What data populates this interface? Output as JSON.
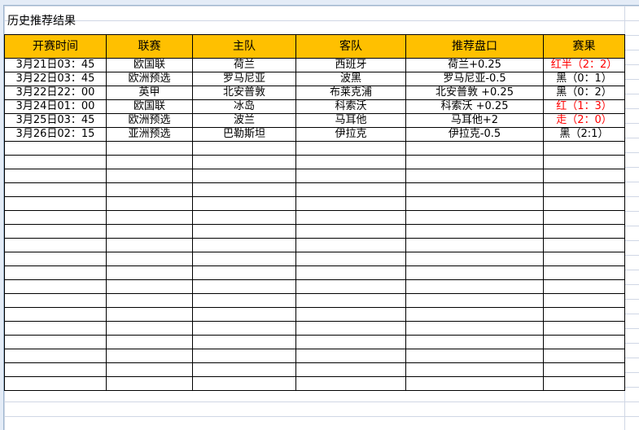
{
  "sheet_title": "历史推荐结果",
  "headers": [
    "开赛时间",
    "联赛",
    "主队",
    "客队",
    "推荐盘口",
    "赛果"
  ],
  "rows": [
    {
      "time": "3月21日03：45",
      "league": "欧国联",
      "home": "荷兰",
      "away": "西班牙",
      "pick": "荷兰+0.25",
      "result": "红半（2：2）",
      "result_color": "#ff0000"
    },
    {
      "time": "3月22日03：45",
      "league": "欧洲预选",
      "home": "罗马尼亚",
      "away": "波黑",
      "pick": "罗马尼亚-0.5",
      "result": "黑（0：1）",
      "result_color": "#000000"
    },
    {
      "time": "3月22日22：00",
      "league": "英甲",
      "home": "北安普敦",
      "away": "布莱克浦",
      "pick": "北安普敦 +0.25",
      "result": "黑（0：2）",
      "result_color": "#000000"
    },
    {
      "time": "3月24日01：00",
      "league": "欧国联",
      "home": "冰岛",
      "away": "科索沃",
      "pick": "科索沃 +0.25",
      "result": "红（1：3）",
      "result_color": "#ff0000"
    },
    {
      "time": "3月25日03：45",
      "league": "欧洲预选",
      "home": "波兰",
      "away": "马耳他",
      "pick": "马耳他+2",
      "result": "走（2：0）",
      "result_color": "#ff0000"
    },
    {
      "time": "3月26日02：15",
      "league": "亚洲预选",
      "home": "巴勒斯坦",
      "away": "伊拉克",
      "pick": "伊拉克-0.5",
      "result": "黑（2:1）",
      "result_color": "#000000"
    }
  ],
  "empty_rows": 18,
  "colors": {
    "header_bg": "#ffc000",
    "red": "#ff0000"
  }
}
